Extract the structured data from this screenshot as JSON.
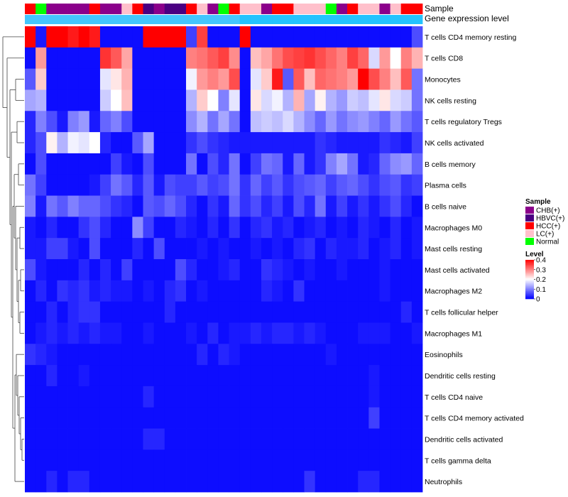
{
  "chart_data": {
    "type": "heatmap",
    "title": "",
    "annotation_tracks": [
      "Sample",
      "Gene expression level"
    ],
    "cell_types": [
      "T cells CD4 memory resting",
      "T cells CD8",
      "Monocytes",
      "NK cells resting",
      "T cells regulatory  Tregs",
      "NK cells activated",
      "B cells memory",
      "Plasma cells",
      "B cells naive",
      "Macrophages M0",
      "Mast cells resting",
      "Mast cells activated",
      "Macrophages M2",
      "T cells follicular helper",
      "Macrophages M1",
      "Eosinophils",
      "Dendritic cells resting",
      "T cells CD4 naive",
      "T cells CD4 memory activated",
      "Dendritic cells activated",
      "T cells gamma delta",
      "Neutrophils"
    ],
    "sample_groups": [
      "HCC",
      "Normal",
      "CHB",
      "CHB",
      "CHB",
      "CHB",
      "HCC",
      "CHB",
      "CHB",
      "LC",
      "HCC",
      "HBVC",
      "CHB",
      "HBVC",
      "HBVC",
      "HCC",
      "LC",
      "CHB",
      "Normal",
      "HCC",
      "LC",
      "LC",
      "CHB",
      "HCC",
      "HCC",
      "LC",
      "LC",
      "LC",
      "Normal",
      "CHB",
      "HCC",
      "LC",
      "LC",
      "CHB",
      "LC",
      "HCC",
      "HCC"
    ],
    "expression_track_values": [
      0.31,
      0.31,
      0.31,
      0.31,
      0.31,
      0.31,
      0.31,
      0.31,
      0.31,
      0.31,
      0.31,
      0.31,
      0.31,
      0.31,
      0.31,
      0.31,
      0.31,
      0.31,
      0.31,
      0.31,
      0.78,
      0.78,
      0.78,
      0.78,
      0.78,
      0.78,
      0.78,
      0.78,
      0.78,
      0.78,
      0.78,
      0.78,
      0.78,
      0.78,
      0.78,
      0.78,
      0.78
    ],
    "values": [
      [
        0.42,
        0.02,
        0.42,
        0.42,
        0.38,
        0.42,
        0.38,
        0.01,
        0.01,
        0.01,
        0.01,
        0.42,
        0.42,
        0.42,
        0.42,
        0.05,
        0.35,
        0.01,
        0.01,
        0.01,
        0.42,
        0.01,
        0.01,
        0.01,
        0.01,
        0.01,
        0.01,
        0.01,
        0.01,
        0.01,
        0.01,
        0.01,
        0.01,
        0.01,
        0.01,
        0.01,
        0.06
      ],
      [
        0.01,
        0.28,
        0.01,
        0.01,
        0.01,
        0.01,
        0.01,
        0.36,
        0.33,
        0.27,
        0.01,
        0.01,
        0.01,
        0.01,
        0.01,
        0.3,
        0.31,
        0.33,
        0.35,
        0.29,
        0.01,
        0.25,
        0.27,
        0.31,
        0.34,
        0.35,
        0.36,
        0.34,
        0.32,
        0.3,
        0.35,
        0.32,
        0.17,
        0.28,
        0.2,
        0.3,
        0.26
      ],
      [
        0.07,
        0.24,
        0.01,
        0.01,
        0.01,
        0.01,
        0.01,
        0.18,
        0.22,
        0.26,
        0.01,
        0.01,
        0.01,
        0.01,
        0.01,
        0.19,
        0.28,
        0.3,
        0.28,
        0.34,
        0.01,
        0.18,
        0.24,
        0.38,
        0.07,
        0.33,
        0.25,
        0.32,
        0.31,
        0.3,
        0.28,
        0.4,
        0.34,
        0.3,
        0.25,
        0.33,
        0.09
      ],
      [
        0.13,
        0.14,
        0.01,
        0.01,
        0.01,
        0.01,
        0.01,
        0.16,
        0.2,
        0.25,
        0.01,
        0.01,
        0.01,
        0.01,
        0.01,
        0.14,
        0.24,
        0.2,
        0.1,
        0.18,
        0.01,
        0.22,
        0.17,
        0.19,
        0.14,
        0.26,
        0.13,
        0.21,
        0.14,
        0.12,
        0.16,
        0.15,
        0.18,
        0.22,
        0.17,
        0.16,
        0.09
      ],
      [
        0.03,
        0.1,
        0.06,
        0.02,
        0.1,
        0.12,
        0.02,
        0.08,
        0.1,
        0.06,
        0.01,
        0.01,
        0.01,
        0.01,
        0.01,
        0.11,
        0.14,
        0.09,
        0.13,
        0.09,
        0.01,
        0.15,
        0.16,
        0.15,
        0.17,
        0.14,
        0.11,
        0.08,
        0.12,
        0.09,
        0.11,
        0.12,
        0.1,
        0.08,
        0.12,
        0.09,
        0.07
      ],
      [
        0.03,
        0.06,
        0.21,
        0.14,
        0.19,
        0.18,
        0.2,
        0.03,
        0.01,
        0.01,
        0.07,
        0.13,
        0.01,
        0.01,
        0.01,
        0.04,
        0.06,
        0.04,
        0.03,
        0.02,
        0.02,
        0.02,
        0.02,
        0.02,
        0.02,
        0.02,
        0.02,
        0.04,
        0.03,
        0.02,
        0.02,
        0.02,
        0.02,
        0.04,
        0.03,
        0.02,
        0.05
      ],
      [
        0.01,
        0.06,
        0.01,
        0.01,
        0.01,
        0.01,
        0.01,
        0.01,
        0.05,
        0.02,
        0.01,
        0.06,
        0.01,
        0.01,
        0.01,
        0.09,
        0.01,
        0.06,
        0.03,
        0.09,
        0.01,
        0.05,
        0.09,
        0.08,
        0.02,
        0.08,
        0.02,
        0.04,
        0.1,
        0.13,
        0.09,
        0.02,
        0.03,
        0.08,
        0.11,
        0.12,
        0.08
      ],
      [
        0.09,
        0.05,
        0.01,
        0.01,
        0.01,
        0.01,
        0.02,
        0.05,
        0.09,
        0.07,
        0.03,
        0.07,
        0.02,
        0.06,
        0.05,
        0.05,
        0.07,
        0.05,
        0.06,
        0.09,
        0.04,
        0.08,
        0.05,
        0.07,
        0.04,
        0.06,
        0.07,
        0.08,
        0.05,
        0.07,
        0.08,
        0.06,
        0.04,
        0.06,
        0.07,
        0.04,
        0.05
      ],
      [
        0.1,
        0.02,
        0.09,
        0.07,
        0.1,
        0.08,
        0.08,
        0.06,
        0.04,
        0.03,
        0.01,
        0.07,
        0.06,
        0.08,
        0.06,
        0.03,
        0.01,
        0.04,
        0.02,
        0.08,
        0.04,
        0.06,
        0.03,
        0.05,
        0.02,
        0.06,
        0.03,
        0.09,
        0.02,
        0.05,
        0.02,
        0.04,
        0.02,
        0.04,
        0.06,
        0.03,
        0.01
      ],
      [
        0.02,
        0.01,
        0.03,
        0.01,
        0.01,
        0.04,
        0.06,
        0.03,
        0.01,
        0.01,
        0.11,
        0.05,
        0.01,
        0.01,
        0.03,
        0.02,
        0.01,
        0.03,
        0.01,
        0.04,
        0.01,
        0.03,
        0.04,
        0.02,
        0.03,
        0.01,
        0.02,
        0.03,
        0.01,
        0.02,
        0.01,
        0.03,
        0.02,
        0.01,
        0.03,
        0.01,
        0.02
      ],
      [
        0.02,
        0.02,
        0.05,
        0.05,
        0.02,
        0.01,
        0.06,
        0.01,
        0.01,
        0.01,
        0.03,
        0.01,
        0.06,
        0.01,
        0.01,
        0.01,
        0.02,
        0.01,
        0.02,
        0.01,
        0.01,
        0.02,
        0.01,
        0.02,
        0.01,
        0.03,
        0.04,
        0.01,
        0.03,
        0.02,
        0.02,
        0.03,
        0.01,
        0.02,
        0.03,
        0.01,
        0.02
      ],
      [
        0.06,
        0.02,
        0.01,
        0.01,
        0.01,
        0.03,
        0.01,
        0.03,
        0.01,
        0.05,
        0.01,
        0.01,
        0.01,
        0.01,
        0.06,
        0.03,
        0.01,
        0.01,
        0.02,
        0.03,
        0.01,
        0.01,
        0.04,
        0.03,
        0.02,
        0.01,
        0.02,
        0.01,
        0.01,
        0.02,
        0.01,
        0.01,
        0.01,
        0.02,
        0.01,
        0.01,
        0.01
      ],
      [
        0.01,
        0.03,
        0.01,
        0.04,
        0.03,
        0.04,
        0.02,
        0.03,
        0.02,
        0.02,
        0.01,
        0.02,
        0.01,
        0.03,
        0.04,
        0.01,
        0.02,
        0.01,
        0.01,
        0.01,
        0.01,
        0.01,
        0.03,
        0.02,
        0.01,
        0.04,
        0.01,
        0.01,
        0.01,
        0.01,
        0.01,
        0.01,
        0.01,
        0.02,
        0.01,
        0.01,
        0.01
      ],
      [
        0.01,
        0.01,
        0.03,
        0.01,
        0.03,
        0.04,
        0.04,
        0.01,
        0.01,
        0.01,
        0.01,
        0.01,
        0.01,
        0.03,
        0.01,
        0.01,
        0.01,
        0.01,
        0.01,
        0.01,
        0.01,
        0.01,
        0.01,
        0.01,
        0.01,
        0.01,
        0.01,
        0.01,
        0.01,
        0.01,
        0.01,
        0.01,
        0.01,
        0.01,
        0.01,
        0.03,
        0.01
      ],
      [
        0.01,
        0.02,
        0.03,
        0.02,
        0.03,
        0.02,
        0.03,
        0.02,
        0.02,
        0.01,
        0.01,
        0.02,
        0.01,
        0.01,
        0.01,
        0.02,
        0.01,
        0.03,
        0.01,
        0.02,
        0.02,
        0.03,
        0.02,
        0.03,
        0.03,
        0.02,
        0.03,
        0.02,
        0.01,
        0.01,
        0.01,
        0.02,
        0.02,
        0.02,
        0.01,
        0.01,
        0.02
      ],
      [
        0.04,
        0.03,
        0.02,
        0.01,
        0.01,
        0.01,
        0.01,
        0.01,
        0.01,
        0.01,
        0.01,
        0.01,
        0.01,
        0.01,
        0.01,
        0.01,
        0.03,
        0.01,
        0.03,
        0.02,
        0.01,
        0.01,
        0.01,
        0.01,
        0.01,
        0.01,
        0.01,
        0.01,
        0.02,
        0.01,
        0.01,
        0.01,
        0.01,
        0.01,
        0.01,
        0.01,
        0.01
      ],
      [
        0.01,
        0.01,
        0.03,
        0.01,
        0.01,
        0.02,
        0.01,
        0.01,
        0.01,
        0.01,
        0.01,
        0.01,
        0.01,
        0.01,
        0.01,
        0.01,
        0.01,
        0.01,
        0.01,
        0.01,
        0.01,
        0.01,
        0.01,
        0.01,
        0.01,
        0.01,
        0.01,
        0.01,
        0.01,
        0.01,
        0.01,
        0.01,
        0.02,
        0.01,
        0.01,
        0.01,
        0.01
      ],
      [
        0.01,
        0.01,
        0.01,
        0.01,
        0.01,
        0.01,
        0.01,
        0.01,
        0.01,
        0.01,
        0.01,
        0.03,
        0.01,
        0.01,
        0.01,
        0.01,
        0.01,
        0.01,
        0.01,
        0.01,
        0.01,
        0.01,
        0.01,
        0.01,
        0.01,
        0.01,
        0.01,
        0.01,
        0.01,
        0.01,
        0.01,
        0.01,
        0.02,
        0.01,
        0.01,
        0.01,
        0.01
      ],
      [
        0.01,
        0.01,
        0.01,
        0.01,
        0.01,
        0.01,
        0.01,
        0.01,
        0.01,
        0.01,
        0.01,
        0.01,
        0.01,
        0.01,
        0.01,
        0.01,
        0.01,
        0.01,
        0.01,
        0.01,
        0.01,
        0.01,
        0.01,
        0.01,
        0.01,
        0.01,
        0.01,
        0.01,
        0.01,
        0.01,
        0.01,
        0.01,
        0.05,
        0.01,
        0.01,
        0.01,
        0.01
      ],
      [
        0.01,
        0.01,
        0.01,
        0.01,
        0.01,
        0.01,
        0.01,
        0.01,
        0.01,
        0.01,
        0.01,
        0.03,
        0.03,
        0.01,
        0.01,
        0.01,
        0.01,
        0.01,
        0.01,
        0.01,
        0.01,
        0.01,
        0.01,
        0.01,
        0.01,
        0.01,
        0.01,
        0.01,
        0.01,
        0.01,
        0.01,
        0.01,
        0.01,
        0.01,
        0.01,
        0.01,
        0.01
      ],
      [
        0.01,
        0.01,
        0.01,
        0.01,
        0.01,
        0.01,
        0.01,
        0.01,
        0.01,
        0.01,
        0.01,
        0.01,
        0.01,
        0.01,
        0.01,
        0.01,
        0.01,
        0.01,
        0.01,
        0.01,
        0.01,
        0.01,
        0.01,
        0.01,
        0.01,
        0.01,
        0.01,
        0.01,
        0.01,
        0.01,
        0.01,
        0.01,
        0.01,
        0.01,
        0.01,
        0.01,
        0.01
      ],
      [
        0.01,
        0.01,
        0.03,
        0.01,
        0.03,
        0.03,
        0.01,
        0.01,
        0.01,
        0.01,
        0.01,
        0.01,
        0.01,
        0.01,
        0.01,
        0.01,
        0.01,
        0.01,
        0.01,
        0.01,
        0.01,
        0.01,
        0.01,
        0.01,
        0.01,
        0.01,
        0.04,
        0.01,
        0.01,
        0.01,
        0.01,
        0.03,
        0.03,
        0.01,
        0.01,
        0.01,
        0.01
      ]
    ],
    "legend_sample": {
      "title": "Sample",
      "entries": [
        {
          "label": "CHB(+)",
          "key": "CHB",
          "color": "#8B008B"
        },
        {
          "label": "HBVC(+)",
          "key": "HBVC",
          "color": "#4B0082"
        },
        {
          "label": "HCC(+)",
          "key": "HCC",
          "color": "#FF0000"
        },
        {
          "label": "LC(+)",
          "key": "LC",
          "color": "#FFC0CB"
        },
        {
          "label": "Normal",
          "key": "Normal",
          "color": "#00FF00"
        }
      ]
    },
    "legend_level": {
      "title": "Level",
      "ticks": [
        "0.4",
        "0.3",
        "0.2",
        "0.1",
        "0"
      ],
      "range": [
        0,
        0.4
      ],
      "colors": [
        "#0000FF",
        "#FFFFFF",
        "#FF0000"
      ]
    },
    "expression_colors": [
      "#87CEFA",
      "#00BFFF"
    ]
  }
}
